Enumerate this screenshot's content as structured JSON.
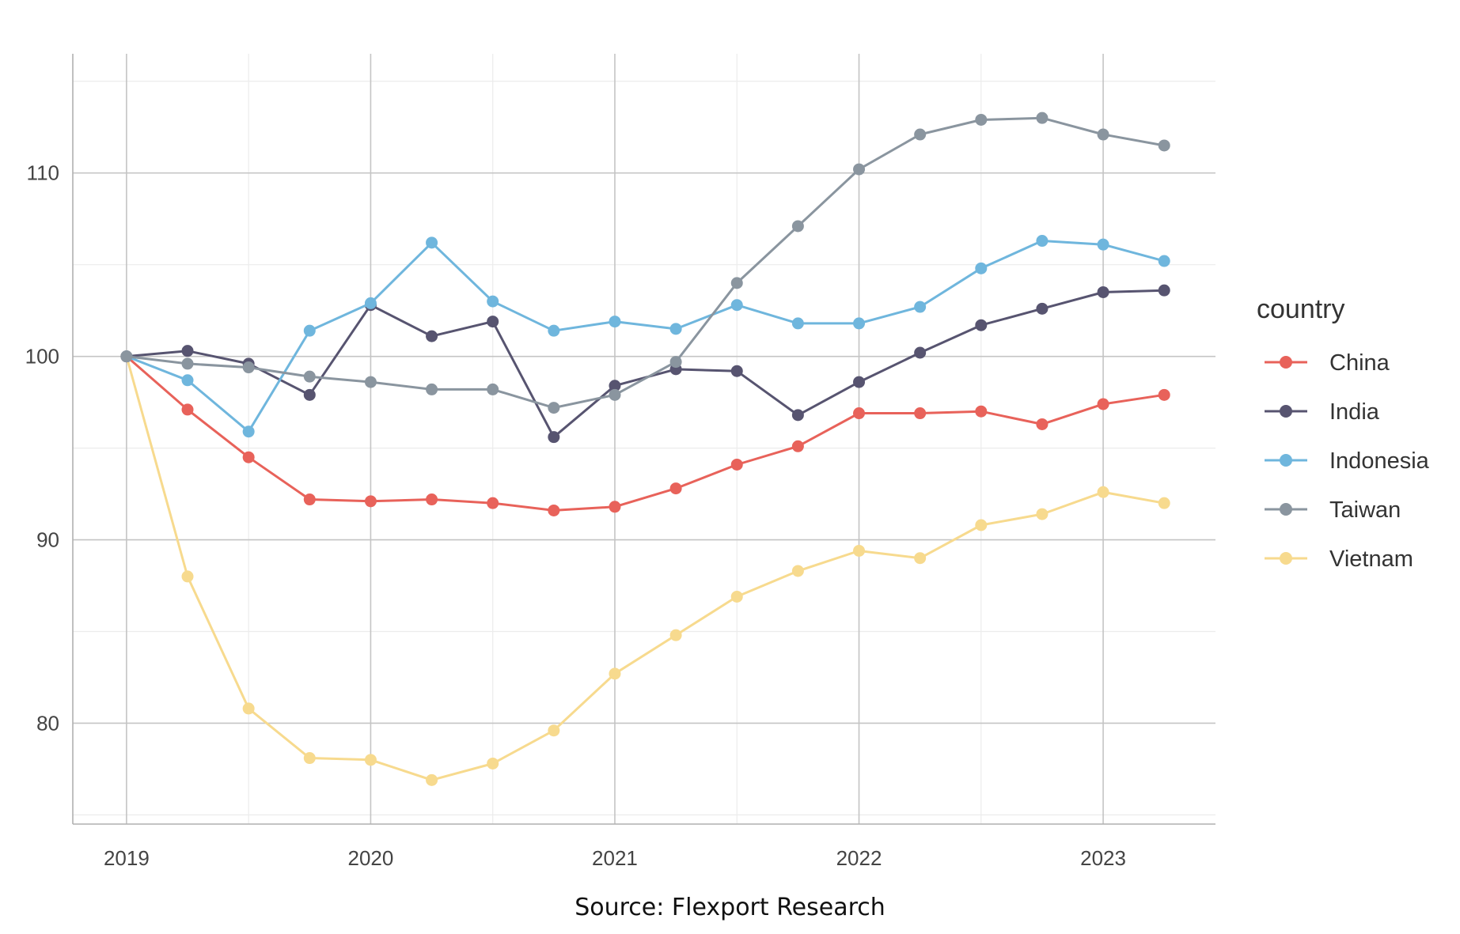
{
  "chart_data": {
    "type": "line",
    "title": "",
    "xlabel": "",
    "ylabel": "",
    "x": [
      2019.0,
      2019.25,
      2019.5,
      2019.75,
      2020.0,
      2020.25,
      2020.5,
      2020.75,
      2021.0,
      2021.25,
      2021.5,
      2021.75,
      2022.0,
      2022.25,
      2022.5,
      2022.75,
      2023.0,
      2023.25
    ],
    "xlim": [
      2018.78,
      2023.46
    ],
    "ylim": [
      74.5,
      116.5
    ],
    "x_ticks": [
      2019,
      2020,
      2021,
      2022,
      2023
    ],
    "x_tick_labels": [
      "2019",
      "2020",
      "2021",
      "2022",
      "2023"
    ],
    "y_ticks": [
      80,
      90,
      100,
      110
    ],
    "y_tick_labels": [
      "80",
      "90",
      "100",
      "110"
    ],
    "grid": true,
    "legend_title": "country",
    "legend_position": "right",
    "series": [
      {
        "name": "China",
        "color": "#e8625a",
        "values": [
          100,
          97.1,
          94.5,
          92.2,
          92.1,
          92.2,
          92.0,
          91.6,
          91.8,
          92.8,
          94.1,
          95.1,
          96.9,
          96.9,
          97.0,
          96.3,
          97.4,
          97.9
        ]
      },
      {
        "name": "India",
        "color": "#575470",
        "values": [
          100,
          100.3,
          99.6,
          97.9,
          102.8,
          101.1,
          101.9,
          95.6,
          98.4,
          99.3,
          99.2,
          96.8,
          98.6,
          100.2,
          101.7,
          102.6,
          103.5,
          103.6
        ]
      },
      {
        "name": "Indonesia",
        "color": "#6fb6dd",
        "values": [
          100,
          98.7,
          95.9,
          101.4,
          102.9,
          106.2,
          103.0,
          101.4,
          101.9,
          101.5,
          102.8,
          101.8,
          101.8,
          102.7,
          104.8,
          106.3,
          106.1,
          105.2
        ]
      },
      {
        "name": "Taiwan",
        "color": "#8a959f",
        "values": [
          100,
          99.6,
          99.4,
          98.9,
          98.6,
          98.2,
          98.2,
          97.2,
          97.9,
          99.7,
          104.0,
          107.1,
          110.2,
          112.1,
          112.9,
          113.0,
          112.1,
          111.5
        ]
      },
      {
        "name": "Vietnam",
        "color": "#f7da8e",
        "values": [
          100,
          88.0,
          80.8,
          78.1,
          78.0,
          76.9,
          77.8,
          79.6,
          82.7,
          84.8,
          86.9,
          88.3,
          89.4,
          89.0,
          90.8,
          91.4,
          92.6,
          92.0
        ]
      }
    ],
    "source": "Source: Flexport Research"
  }
}
